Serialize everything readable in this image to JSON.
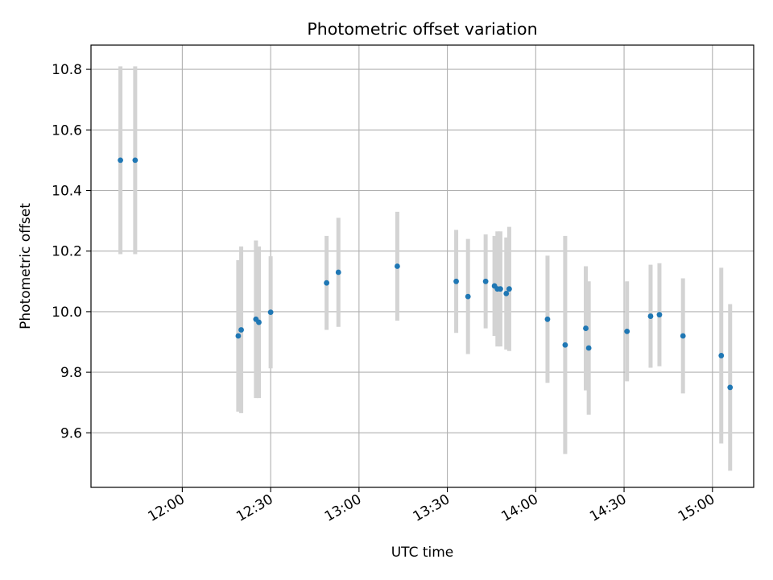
{
  "chart_data": {
    "type": "scatter",
    "title": "Photometric offset variation",
    "xlabel": "UTC time",
    "ylabel": "Photometric offset",
    "x_scale": "time",
    "xlim": [
      "11:29",
      "15:14"
    ],
    "ylim": [
      9.42,
      10.88
    ],
    "xticks": [
      "12:00",
      "12:30",
      "13:00",
      "13:30",
      "14:00",
      "14:30",
      "15:00"
    ],
    "yticks": [
      9.6,
      9.8,
      10.0,
      10.2,
      10.4,
      10.6,
      10.8
    ],
    "grid": true,
    "colors": {
      "points": "#1f77b4",
      "errorbars": "#d3d3d3",
      "grid": "#b0b0b0"
    },
    "series": [
      {
        "x": [
          "11:39",
          "11:44",
          "12:19",
          "12:20",
          "12:25",
          "12:26",
          "12:30",
          "12:49",
          "12:53",
          "13:13",
          "13:33",
          "13:37",
          "13:43",
          "13:46",
          "13:47",
          "13:48",
          "13:50",
          "13:51",
          "14:04",
          "14:10",
          "14:17",
          "14:18",
          "14:31",
          "14:39",
          "14:42",
          "14:50",
          "15:03",
          "15:06"
        ],
        "y": [
          10.5,
          10.5,
          9.92,
          9.94,
          9.975,
          9.965,
          9.998,
          10.095,
          10.13,
          10.15,
          10.1,
          10.05,
          10.1,
          10.085,
          10.075,
          10.075,
          10.06,
          10.075,
          9.975,
          9.89,
          9.945,
          9.88,
          9.935,
          9.985,
          9.99,
          9.92,
          9.855,
          9.75
        ],
        "yerr": [
          0.31,
          0.31,
          0.25,
          0.275,
          0.26,
          0.25,
          0.185,
          0.155,
          0.18,
          0.18,
          0.17,
          0.19,
          0.155,
          0.165,
          0.19,
          0.19,
          0.185,
          0.205,
          0.21,
          0.36,
          0.205,
          0.22,
          0.165,
          0.17,
          0.17,
          0.19,
          0.29,
          0.275
        ]
      }
    ]
  }
}
